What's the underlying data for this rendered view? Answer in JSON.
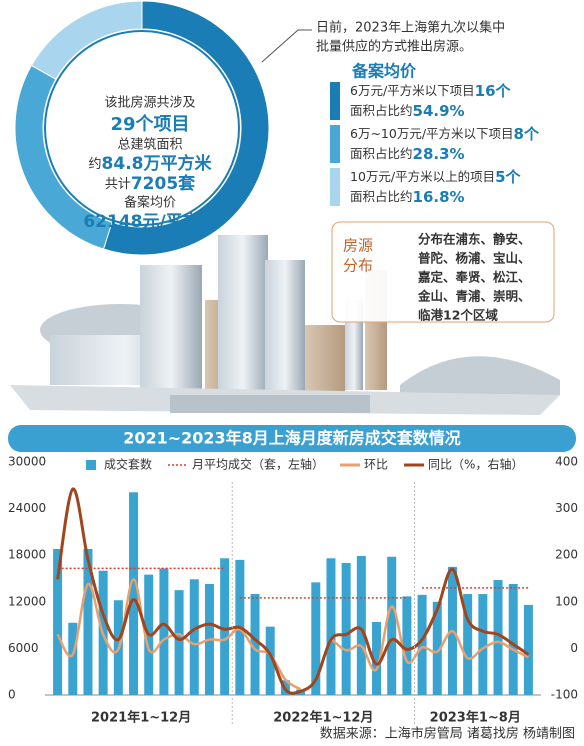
{
  "note": [
    "日前，2023年上海第九次以集中",
    "批量供应的方式推出房源。"
  ],
  "summary": {
    "intro": "该批房源共涉及",
    "projects": "29个项目",
    "area_title": "总建筑面积",
    "area_prefix": "约",
    "area": "84.8万平方米",
    "units_prefix": "共计",
    "units": "7205套",
    "price_title": "备案均价",
    "price": "62148元/平方米"
  },
  "districts": {
    "title": [
      "房源",
      "分布"
    ],
    "lines": [
      "分布在浦东、静安、",
      "普陀、杨浦、宝山、",
      "嘉定、奉贤、松江、",
      "金山、青浦、崇明、",
      "临港12个区域"
    ]
  },
  "source": "数据来源：上海市房管局 诸葛找房 杨靖制图",
  "chart_data": [
    {
      "type": "pie",
      "title": "备案均价",
      "categories": [
        "6万元/平方米以下项目",
        "6万~10万元/平方米以下项目",
        "10万元/平方米以上的项目"
      ],
      "counts": [
        "16个",
        "8个",
        "5个"
      ],
      "share_prefix": "面积占比约",
      "values": [
        54.9,
        28.3,
        16.8
      ],
      "value_labels": [
        "54.9%",
        "28.3%",
        "16.8%"
      ],
      "colors": [
        "#1a7db5",
        "#4aa8d6",
        "#a9d5ef"
      ]
    },
    {
      "type": "combo",
      "title": "2021~2023年8月上海月度新房成交套数情况",
      "categories": [
        null,
        null,
        null,
        null,
        null,
        null,
        null,
        null,
        null,
        null,
        null,
        null,
        null,
        null,
        null,
        null,
        null,
        null,
        null,
        null,
        null,
        null,
        null,
        null,
        null,
        null,
        null,
        null,
        null,
        null,
        null,
        null
      ],
      "x_groups": [
        "2021年1~12月",
        "2022年1~12月",
        "2023年1~8月"
      ],
      "ylim": [
        0,
        30000
      ],
      "yticks": [
        0,
        6000,
        12000,
        18000,
        24000,
        30000
      ],
      "y2lim": [
        -100,
        400
      ],
      "y2ticks": [
        -100,
        0,
        100,
        200,
        300,
        400
      ],
      "grid": false,
      "series": [
        {
          "name": "成交套数",
          "type": "bar",
          "color": "#3aa4d1",
          "values": [
            18800,
            9300,
            18800,
            16000,
            12200,
            26100,
            15500,
            16300,
            13500,
            14900,
            14300,
            17600,
            17400,
            13000,
            8800,
            1900,
            700,
            14500,
            17600,
            17000,
            17900,
            9400,
            17800,
            12700,
            12900,
            12000,
            16500,
            13000,
            13000,
            14800,
            14300,
            11600
          ]
        },
        {
          "name": "月平均成交（套，左轴）",
          "type": "line",
          "style": "dotted",
          "color": "#e03a2f",
          "values": [
            16300,
            16300,
            16300,
            16300,
            16300,
            16300,
            16300,
            16300,
            16300,
            16300,
            16300,
            16300,
            12500,
            12500,
            12500,
            12500,
            12500,
            12500,
            12500,
            12500,
            12500,
            12500,
            12500,
            12500,
            13800,
            13800,
            13800,
            13800,
            13800,
            13800,
            13800,
            13800
          ]
        },
        {
          "name": "环比",
          "type": "line",
          "axis": "y2",
          "color": "#e8a070",
          "values": [
            30,
            -13,
            138,
            30,
            -2,
            148,
            -2,
            19,
            30,
            9,
            19,
            19,
            41,
            -2,
            -13,
            -67,
            -88,
            null,
            21,
            -4,
            5,
            -45,
            90,
            -28,
            2,
            -7,
            37,
            -21,
            0,
            14,
            -3,
            -19
          ]
        },
        {
          "name": "同比（%，右轴）",
          "type": "line",
          "axis": "y2",
          "color": "#a0451e",
          "values": [
            148,
            342,
            191,
            73,
            19,
            105,
            30,
            52,
            19,
            41,
            52,
            41,
            45,
            19,
            -13,
            -88,
            -92,
            -67,
            19,
            30,
            41,
            -34,
            19,
            -2,
            19,
            84,
            170,
            62,
            37,
            30,
            9,
            -13
          ]
        }
      ]
    }
  ]
}
